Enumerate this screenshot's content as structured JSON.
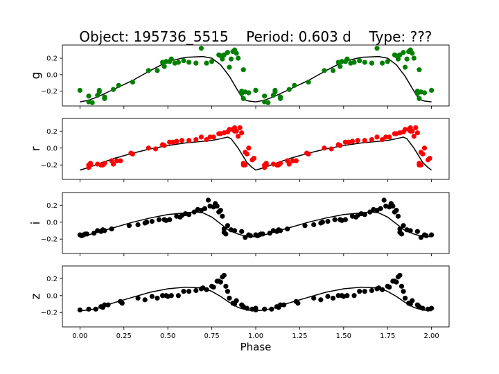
{
  "title": {
    "object": "Object: 195736_5515",
    "period": "Period: 0.603 d",
    "type": "Type: ???"
  },
  "chart_data": {
    "type": "scatter",
    "xlabel": "Phase",
    "xlim": [
      -0.1,
      2.1
    ],
    "xticks": [
      0.0,
      0.25,
      0.5,
      0.75,
      1.0,
      1.25,
      1.5,
      1.75,
      2.0
    ],
    "xtick_labels": [
      "0.00",
      "0.25",
      "0.50",
      "0.75",
      "1.00",
      "1.25",
      "1.50",
      "1.75",
      "2.00"
    ],
    "grid": false,
    "panels": [
      {
        "band": "g",
        "color": "#008000",
        "ylim": [
          -0.38,
          0.36
        ],
        "yticks": [
          -0.2,
          0.0,
          0.2
        ],
        "ytick_labels": [
          "−0.2",
          "0.0",
          "0.2"
        ],
        "points": [
          [
            0.0,
            -0.19
          ],
          [
            0.05,
            -0.26
          ],
          [
            0.05,
            -0.33
          ],
          [
            0.07,
            -0.34
          ],
          [
            0.1,
            -0.25
          ],
          [
            0.11,
            -0.21
          ],
          [
            0.11,
            -0.19
          ],
          [
            0.14,
            -0.27
          ],
          [
            0.14,
            -0.29
          ],
          [
            0.19,
            -0.18
          ],
          [
            0.22,
            -0.13
          ],
          [
            0.3,
            -0.09
          ],
          [
            0.39,
            0.05
          ],
          [
            0.44,
            0.05
          ],
          [
            0.47,
            0.15
          ],
          [
            0.48,
            0.1
          ],
          [
            0.49,
            0.16
          ],
          [
            0.51,
            0.16
          ],
          [
            0.52,
            0.19
          ],
          [
            0.54,
            0.14
          ],
          [
            0.56,
            0.15
          ],
          [
            0.59,
            0.17
          ],
          [
            0.62,
            0.15
          ],
          [
            0.66,
            0.14
          ],
          [
            0.69,
            0.32
          ],
          [
            0.72,
            0.14
          ],
          [
            0.75,
            0.16
          ],
          [
            0.79,
            0.24
          ],
          [
            0.8,
            0.23
          ],
          [
            0.81,
            0.19
          ],
          [
            0.82,
            0.24
          ],
          [
            0.84,
            0.27
          ],
          [
            0.85,
            0.09
          ],
          [
            0.86,
            0.19
          ],
          [
            0.87,
            0.28
          ],
          [
            0.88,
            0.3
          ],
          [
            0.89,
            0.26
          ],
          [
            0.9,
            0.2
          ],
          [
            0.92,
            -0.2
          ],
          [
            0.92,
            -0.23
          ],
          [
            0.93,
            0.06
          ],
          [
            0.93,
            -0.29
          ],
          [
            0.94,
            -0.21
          ],
          [
            0.96,
            -0.22
          ],
          [
            1.0,
            -0.19
          ]
        ],
        "model_phase": [
          0.0,
          0.05,
          0.1,
          0.2,
          0.3,
          0.4,
          0.5,
          0.6,
          0.7,
          0.75,
          0.8,
          0.85,
          0.9,
          0.93,
          0.96,
          1.0
        ],
        "model_value": [
          -0.33,
          -0.31,
          -0.27,
          -0.17,
          -0.07,
          0.05,
          0.16,
          0.21,
          0.22,
          0.2,
          0.12,
          -0.02,
          -0.2,
          -0.3,
          -0.32,
          -0.33
        ]
      },
      {
        "band": "r",
        "color": "#ff0000",
        "ylim": [
          -0.37,
          0.35
        ],
        "yticks": [
          -0.2,
          0.0,
          0.2
        ],
        "ytick_labels": [
          "−0.2",
          "0.0",
          "0.2"
        ],
        "points": [
          [
            0.05,
            -0.2
          ],
          [
            0.05,
            -0.23
          ],
          [
            0.06,
            -0.2
          ],
          [
            0.06,
            -0.18
          ],
          [
            0.1,
            -0.19
          ],
          [
            0.12,
            -0.2
          ],
          [
            0.13,
            -0.2
          ],
          [
            0.14,
            -0.18
          ],
          [
            0.18,
            -0.15
          ],
          [
            0.19,
            -0.19
          ],
          [
            0.21,
            -0.15
          ],
          [
            0.23,
            -0.15
          ],
          [
            0.29,
            -0.06
          ],
          [
            0.3,
            -0.07
          ],
          [
            0.39,
            0.0
          ],
          [
            0.43,
            -0.01
          ],
          [
            0.47,
            0.04
          ],
          [
            0.48,
            0.03
          ],
          [
            0.51,
            0.07
          ],
          [
            0.53,
            0.07
          ],
          [
            0.55,
            0.08
          ],
          [
            0.58,
            0.09
          ],
          [
            0.62,
            0.09
          ],
          [
            0.66,
            0.1
          ],
          [
            0.69,
            0.13
          ],
          [
            0.72,
            0.1
          ],
          [
            0.74,
            0.13
          ],
          [
            0.76,
            0.13
          ],
          [
            0.79,
            0.17
          ],
          [
            0.8,
            0.17
          ],
          [
            0.82,
            0.18
          ],
          [
            0.84,
            0.19
          ],
          [
            0.85,
            0.22
          ],
          [
            0.87,
            0.22
          ],
          [
            0.88,
            0.2
          ],
          [
            0.88,
            0.24
          ],
          [
            0.89,
            0.2
          ],
          [
            0.9,
            0.14
          ],
          [
            0.91,
            0.24
          ],
          [
            0.92,
            0.18
          ],
          [
            0.93,
            -0.18
          ],
          [
            0.93,
            -0.2
          ],
          [
            0.94,
            -0.2
          ],
          [
            0.94,
            -0.05
          ],
          [
            0.95,
            -0.07
          ],
          [
            0.96,
            0.0
          ],
          [
            0.98,
            -0.14
          ],
          [
            0.99,
            -0.12
          ]
        ],
        "model_phase": [
          0.0,
          0.05,
          0.1,
          0.2,
          0.3,
          0.4,
          0.5,
          0.6,
          0.7,
          0.75,
          0.8,
          0.84,
          0.86,
          0.9,
          0.95,
          0.98,
          1.0
        ],
        "model_value": [
          -0.26,
          -0.23,
          -0.19,
          -0.12,
          -0.06,
          -0.01,
          0.03,
          0.06,
          0.08,
          0.09,
          0.11,
          0.13,
          0.11,
          0.0,
          -0.17,
          -0.23,
          -0.26
        ]
      },
      {
        "band": "i",
        "color": "#000000",
        "ylim": [
          -0.37,
          0.35
        ],
        "yticks": [
          -0.2,
          0.0,
          0.2
        ],
        "ytick_labels": [
          "−0.2",
          "0.0",
          "0.2"
        ],
        "points": [
          [
            0.0,
            -0.15
          ],
          [
            0.01,
            -0.16
          ],
          [
            0.02,
            -0.15
          ],
          [
            0.03,
            -0.14
          ],
          [
            0.04,
            -0.14
          ],
          [
            0.08,
            -0.13
          ],
          [
            0.1,
            -0.1
          ],
          [
            0.12,
            -0.11
          ],
          [
            0.13,
            -0.09
          ],
          [
            0.14,
            -0.1
          ],
          [
            0.18,
            -0.08
          ],
          [
            0.28,
            -0.04
          ],
          [
            0.33,
            -0.03
          ],
          [
            0.37,
            -0.01
          ],
          [
            0.38,
            0.0
          ],
          [
            0.41,
            0.01
          ],
          [
            0.45,
            0.03
          ],
          [
            0.48,
            0.03
          ],
          [
            0.49,
            0.02
          ],
          [
            0.51,
            0.03
          ],
          [
            0.55,
            0.07
          ],
          [
            0.57,
            0.06
          ],
          [
            0.58,
            0.08
          ],
          [
            0.6,
            0.1
          ],
          [
            0.62,
            0.09
          ],
          [
            0.65,
            0.12
          ],
          [
            0.67,
            0.15
          ],
          [
            0.69,
            0.14
          ],
          [
            0.71,
            0.16
          ],
          [
            0.73,
            0.26
          ],
          [
            0.74,
            0.19
          ],
          [
            0.76,
            0.18
          ],
          [
            0.77,
            0.22
          ],
          [
            0.78,
            0.19
          ],
          [
            0.79,
            0.12
          ],
          [
            0.8,
            0.14
          ],
          [
            0.81,
            0.07
          ],
          [
            0.82,
            -0.08
          ],
          [
            0.82,
            -0.12
          ],
          [
            0.83,
            -0.14
          ],
          [
            0.84,
            -0.04
          ],
          [
            0.86,
            -0.09
          ],
          [
            0.88,
            -0.1
          ],
          [
            0.92,
            -0.11
          ],
          [
            0.94,
            -0.18
          ],
          [
            0.96,
            -0.15
          ],
          [
            0.97,
            -0.16
          ],
          [
            1.0,
            -0.15
          ]
        ],
        "model_phase": [
          0.0,
          0.05,
          0.1,
          0.2,
          0.3,
          0.4,
          0.5,
          0.6,
          0.66,
          0.7,
          0.75,
          0.8,
          0.85,
          0.9,
          0.95,
          1.0
        ],
        "model_value": [
          -0.17,
          -0.15,
          -0.12,
          -0.06,
          0.0,
          0.05,
          0.09,
          0.11,
          0.12,
          0.11,
          0.06,
          -0.02,
          -0.1,
          -0.14,
          -0.17,
          -0.17
        ]
      },
      {
        "band": "z",
        "color": "#000000",
        "ylim": [
          -0.37,
          0.35
        ],
        "yticks": [
          -0.2,
          0.0,
          0.2
        ],
        "ytick_labels": [
          "−0.2",
          "0.0",
          "0.2"
        ],
        "points": [
          [
            0.0,
            -0.17
          ],
          [
            0.05,
            -0.16
          ],
          [
            0.09,
            -0.16
          ],
          [
            0.12,
            -0.13
          ],
          [
            0.13,
            -0.14
          ],
          [
            0.14,
            -0.11
          ],
          [
            0.16,
            -0.11
          ],
          [
            0.23,
            -0.07
          ],
          [
            0.24,
            -0.09
          ],
          [
            0.33,
            -0.03
          ],
          [
            0.37,
            -0.05
          ],
          [
            0.41,
            -0.01
          ],
          [
            0.44,
            -0.03
          ],
          [
            0.47,
            0.0
          ],
          [
            0.49,
            0.0
          ],
          [
            0.5,
            -0.01
          ],
          [
            0.52,
            0.0
          ],
          [
            0.56,
            0.0
          ],
          [
            0.59,
            0.05
          ],
          [
            0.62,
            0.05
          ],
          [
            0.66,
            0.06
          ],
          [
            0.69,
            0.08
          ],
          [
            0.7,
            0.09
          ],
          [
            0.72,
            0.07
          ],
          [
            0.75,
            0.11
          ],
          [
            0.76,
            0.1
          ],
          [
            0.78,
            0.17
          ],
          [
            0.79,
            0.17
          ],
          [
            0.8,
            0.16
          ],
          [
            0.81,
            0.22
          ],
          [
            0.82,
            0.24
          ],
          [
            0.83,
            0.11
          ],
          [
            0.84,
            0.05
          ],
          [
            0.85,
            -0.03
          ],
          [
            0.87,
            -0.09
          ],
          [
            0.88,
            -0.1
          ],
          [
            0.89,
            -0.06
          ],
          [
            0.92,
            -0.11
          ],
          [
            0.93,
            -0.13
          ],
          [
            0.95,
            -0.15
          ],
          [
            0.98,
            -0.16
          ],
          [
            1.0,
            -0.15
          ]
        ],
        "model_phase": [
          0.0,
          0.05,
          0.1,
          0.2,
          0.3,
          0.4,
          0.5,
          0.6,
          0.7,
          0.75,
          0.8,
          0.85,
          0.9,
          0.95,
          1.0
        ],
        "model_value": [
          -0.18,
          -0.17,
          -0.15,
          -0.08,
          -0.02,
          0.04,
          0.08,
          0.1,
          0.09,
          0.05,
          -0.01,
          -0.08,
          -0.14,
          -0.17,
          -0.18
        ]
      }
    ]
  }
}
